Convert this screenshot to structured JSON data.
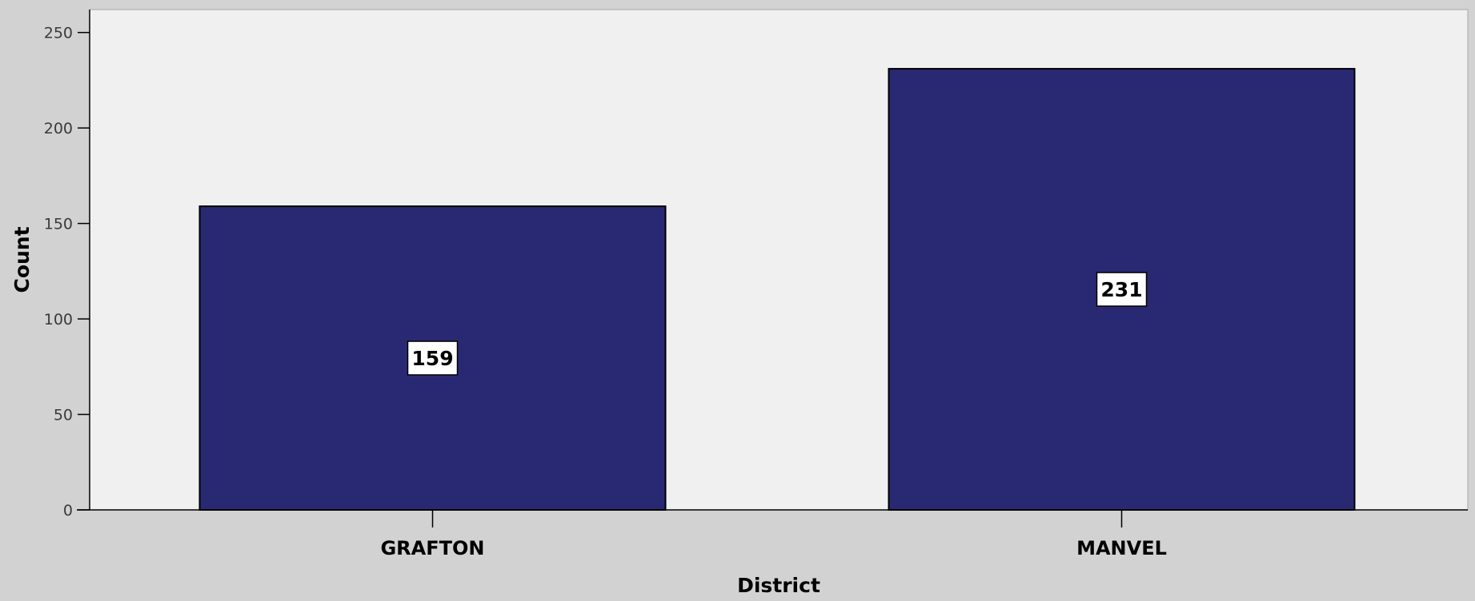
{
  "chart_data": {
    "type": "bar",
    "categories": [
      "GRAFTON",
      "MANVEL"
    ],
    "values": [
      159,
      231
    ],
    "data_labels": [
      "159",
      "231"
    ],
    "title": "",
    "xlabel": "District",
    "ylabel": "Count",
    "ylim": [
      0,
      262
    ],
    "yticks": [
      0,
      50,
      100,
      150,
      200,
      250
    ],
    "ytick_labels": [
      "0",
      "50",
      "100",
      "150",
      "200",
      "250"
    ],
    "grid": false,
    "legend": "none"
  },
  "colors": {
    "page_background": "#d2d2d2",
    "plot_background": "#f0f0f0",
    "bar_fill": "#292973",
    "bar_stroke": "#000000",
    "axis": "#000000",
    "data_label_box": "#ffffff"
  }
}
